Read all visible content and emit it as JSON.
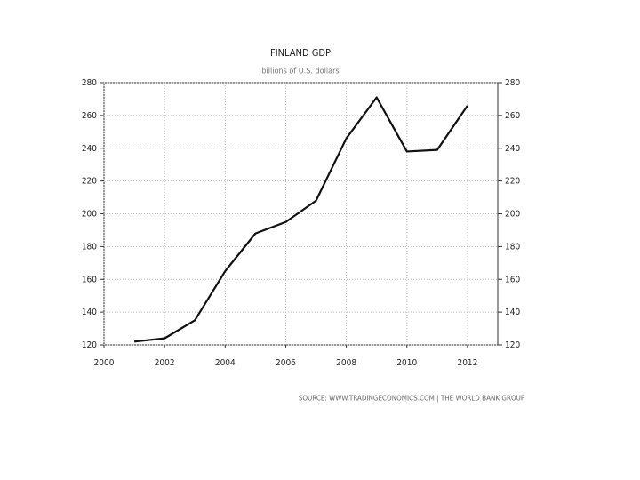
{
  "chart_data": {
    "type": "line",
    "title": "FINLAND GDP",
    "subtitle": "billions of U.S. dollars",
    "source": "SOURCE: WWW.TRADINGECONOMICS.COM  |  THE WORLD BANK GROUP",
    "x": [
      2001,
      2002,
      2003,
      2004,
      2005,
      2006,
      2007,
      2008,
      2009,
      2010,
      2011,
      2012
    ],
    "series": [
      {
        "name": "Finland GDP",
        "color": "#111111",
        "values": [
          122,
          124,
          135,
          165,
          188,
          195,
          208,
          246,
          271,
          238,
          239,
          266
        ]
      }
    ],
    "xlim": [
      2000,
      2013
    ],
    "xticks": [
      2000,
      2002,
      2004,
      2006,
      2008,
      2010,
      2012
    ],
    "ylim": [
      120,
      280
    ],
    "yticks": [
      120,
      140,
      160,
      180,
      200,
      220,
      240,
      260,
      280
    ],
    "grid": true
  }
}
